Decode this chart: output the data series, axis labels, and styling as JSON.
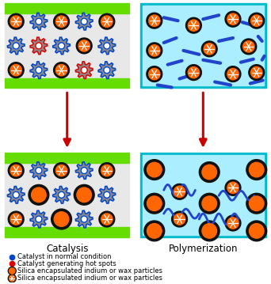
{
  "fig_width": 3.42,
  "fig_height": 3.59,
  "dpi": 100,
  "green_color": "#66dd00",
  "cyan_bg": "#aaeeff",
  "cyan_border": "#00bbcc",
  "orange_color": "#ff6600",
  "black_color": "#111111",
  "gray_color": "#888888",
  "blue_dot_color": "#0044cc",
  "red_dot_color": "#dd0000",
  "blue_line_color": "#2244cc",
  "white_color": "#ffffff",
  "arrow_color": "#cc0000",
  "bg_light": "#e8e8e8",
  "label_catalysis": "Catalysis",
  "label_polymerization": "Polymerization",
  "legend_blue_text": "Catalyst in normal condition",
  "legend_red_text": "Catalyst generating hot spots",
  "legend_orange_text": "Silica encapsulated indium or wax particles",
  "legend_pattern_text": "Silica encapsulated indium or wax particles"
}
